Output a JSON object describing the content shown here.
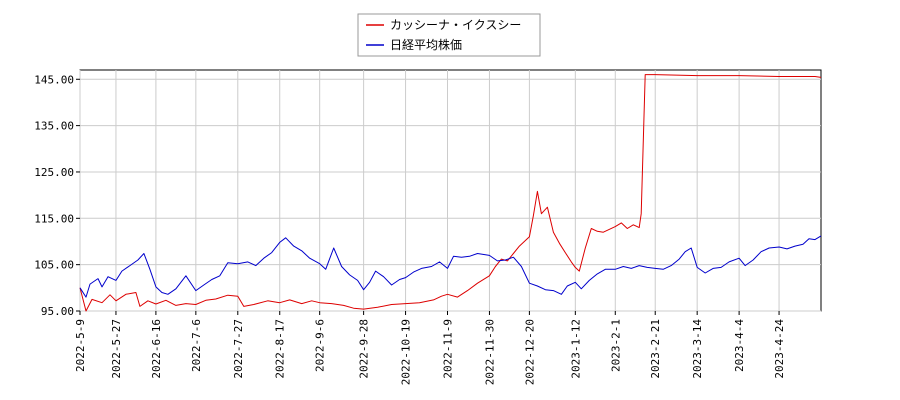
{
  "chart_data": {
    "type": "line",
    "title": "",
    "xlabel": "",
    "ylabel": "",
    "x_tick_labels": [
      "2022-5-9",
      "2022-5-27",
      "2022-6-16",
      "2022-7-6",
      "2022-7-27",
      "2022-8-17",
      "2022-9-6",
      "2022-9-28",
      "2022-10-19",
      "2022-11-9",
      "2022-11-30",
      "2022-12-20",
      "2023-1-12",
      "2023-2-1",
      "2023-2-21",
      "2023-3-14",
      "2023-4-4",
      "2023-4-24"
    ],
    "x_tick_dates": [
      "2022-05-09",
      "2022-05-27",
      "2022-06-16",
      "2022-07-06",
      "2022-07-27",
      "2022-08-17",
      "2022-09-06",
      "2022-09-28",
      "2022-10-19",
      "2022-11-09",
      "2022-11-30",
      "2022-12-20",
      "2023-01-12",
      "2023-02-01",
      "2023-02-21",
      "2023-03-14",
      "2023-04-04",
      "2023-04-24"
    ],
    "y_ticks": [
      95,
      105,
      115,
      125,
      135,
      145
    ],
    "y_tick_labels": [
      "95.00",
      "105.00",
      "115.00",
      "125.00",
      "135.00",
      "145.00"
    ],
    "xlim": [
      "2022-05-09",
      "2023-05-15"
    ],
    "ylim": [
      95,
      147
    ],
    "grid": true,
    "legend_position": "top-center",
    "series": [
      {
        "name": "カッシーナ・イクスシー",
        "color": "#dd0000",
        "points": [
          [
            "2022-05-09",
            100
          ],
          [
            "2022-05-12",
            95
          ],
          [
            "2022-05-15",
            97.5
          ],
          [
            "2022-05-20",
            96.8
          ],
          [
            "2022-05-24",
            98.5
          ],
          [
            "2022-05-27",
            97.2
          ],
          [
            "2022-06-01",
            98.6
          ],
          [
            "2022-06-06",
            99
          ],
          [
            "2022-06-08",
            96
          ],
          [
            "2022-06-12",
            97.2
          ],
          [
            "2022-06-16",
            96.5
          ],
          [
            "2022-06-21",
            97.3
          ],
          [
            "2022-06-26",
            96.2
          ],
          [
            "2022-07-01",
            96.6
          ],
          [
            "2022-07-06",
            96.4
          ],
          [
            "2022-07-11",
            97.3
          ],
          [
            "2022-07-16",
            97.6
          ],
          [
            "2022-07-22",
            98.4
          ],
          [
            "2022-07-27",
            98.2
          ],
          [
            "2022-07-30",
            96
          ],
          [
            "2022-08-04",
            96.4
          ],
          [
            "2022-08-11",
            97.2
          ],
          [
            "2022-08-17",
            96.8
          ],
          [
            "2022-08-22",
            97.4
          ],
          [
            "2022-08-28",
            96.6
          ],
          [
            "2022-09-02",
            97.2
          ],
          [
            "2022-09-06",
            96.8
          ],
          [
            "2022-09-12",
            96.6
          ],
          [
            "2022-09-18",
            96.2
          ],
          [
            "2022-09-23",
            95.6
          ],
          [
            "2022-09-28",
            95.4
          ],
          [
            "2022-10-05",
            95.8
          ],
          [
            "2022-10-12",
            96.4
          ],
          [
            "2022-10-19",
            96.6
          ],
          [
            "2022-10-26",
            96.8
          ],
          [
            "2022-11-02",
            97.4
          ],
          [
            "2022-11-06",
            98.2
          ],
          [
            "2022-11-09",
            98.6
          ],
          [
            "2022-11-14",
            98
          ],
          [
            "2022-11-19",
            99.4
          ],
          [
            "2022-11-24",
            101
          ],
          [
            "2022-11-30",
            102.6
          ],
          [
            "2022-12-03",
            104.6
          ],
          [
            "2022-12-06",
            106.2
          ],
          [
            "2022-12-09",
            105.8
          ],
          [
            "2022-12-12",
            107.4
          ],
          [
            "2022-12-15",
            109
          ],
          [
            "2022-12-20",
            111
          ],
          [
            "2022-12-22",
            115.6
          ],
          [
            "2022-12-24",
            120.8
          ],
          [
            "2022-12-26",
            116
          ],
          [
            "2022-12-29",
            117.4
          ],
          [
            "2023-01-01",
            112
          ],
          [
            "2023-01-04",
            109.6
          ],
          [
            "2023-01-07",
            107.6
          ],
          [
            "2023-01-10",
            105.6
          ],
          [
            "2023-01-12",
            104.4
          ],
          [
            "2023-01-14",
            103.6
          ],
          [
            "2023-01-17",
            108.6
          ],
          [
            "2023-01-20",
            112.8
          ],
          [
            "2023-01-23",
            112.2
          ],
          [
            "2023-01-26",
            112
          ],
          [
            "2023-02-01",
            113.2
          ],
          [
            "2023-02-04",
            114
          ],
          [
            "2023-02-07",
            112.8
          ],
          [
            "2023-02-10",
            113.6
          ],
          [
            "2023-02-13",
            113
          ],
          [
            "2023-02-14",
            116
          ],
          [
            "2023-02-16",
            146
          ],
          [
            "2023-02-21",
            146
          ],
          [
            "2023-03-14",
            145.8
          ],
          [
            "2023-04-04",
            145.8
          ],
          [
            "2023-04-24",
            145.6
          ],
          [
            "2023-05-12",
            145.6
          ],
          [
            "2023-05-15",
            145.4
          ]
        ]
      },
      {
        "name": "日経平均株価",
        "color": "#0000cc",
        "points": [
          [
            "2022-05-09",
            100
          ],
          [
            "2022-05-12",
            98
          ],
          [
            "2022-05-14",
            100.8
          ],
          [
            "2022-05-18",
            102
          ],
          [
            "2022-05-20",
            100.2
          ],
          [
            "2022-05-23",
            102.4
          ],
          [
            "2022-05-27",
            101.6
          ],
          [
            "2022-05-30",
            103.6
          ],
          [
            "2022-06-03",
            104.8
          ],
          [
            "2022-06-07",
            106
          ],
          [
            "2022-06-10",
            107.4
          ],
          [
            "2022-06-13",
            104
          ],
          [
            "2022-06-16",
            100.2
          ],
          [
            "2022-06-19",
            99
          ],
          [
            "2022-06-22",
            98.6
          ],
          [
            "2022-06-26",
            99.8
          ],
          [
            "2022-07-01",
            102.6
          ],
          [
            "2022-07-06",
            99.4
          ],
          [
            "2022-07-10",
            100.6
          ],
          [
            "2022-07-14",
            101.8
          ],
          [
            "2022-07-18",
            102.6
          ],
          [
            "2022-07-22",
            105.4
          ],
          [
            "2022-07-27",
            105.2
          ],
          [
            "2022-08-01",
            105.6
          ],
          [
            "2022-08-05",
            104.8
          ],
          [
            "2022-08-09",
            106.4
          ],
          [
            "2022-08-13",
            107.6
          ],
          [
            "2022-08-17",
            109.8
          ],
          [
            "2022-08-20",
            110.8
          ],
          [
            "2022-08-24",
            109
          ],
          [
            "2022-08-28",
            108
          ],
          [
            "2022-09-01",
            106.4
          ],
          [
            "2022-09-06",
            105.2
          ],
          [
            "2022-09-09",
            104
          ],
          [
            "2022-09-13",
            108.6
          ],
          [
            "2022-09-17",
            104.6
          ],
          [
            "2022-09-21",
            102.8
          ],
          [
            "2022-09-25",
            101.6
          ],
          [
            "2022-09-28",
            99.6
          ],
          [
            "2022-10-01",
            101.2
          ],
          [
            "2022-10-04",
            103.6
          ],
          [
            "2022-10-08",
            102.4
          ],
          [
            "2022-10-12",
            100.6
          ],
          [
            "2022-10-16",
            101.8
          ],
          [
            "2022-10-19",
            102.2
          ],
          [
            "2022-10-23",
            103.4
          ],
          [
            "2022-10-27",
            104.2
          ],
          [
            "2022-11-01",
            104.6
          ],
          [
            "2022-11-05",
            105.6
          ],
          [
            "2022-11-09",
            104.2
          ],
          [
            "2022-11-12",
            106.8
          ],
          [
            "2022-11-16",
            106.6
          ],
          [
            "2022-11-20",
            106.8
          ],
          [
            "2022-11-24",
            107.4
          ],
          [
            "2022-11-30",
            107
          ],
          [
            "2022-12-04",
            105.8
          ],
          [
            "2022-12-08",
            106
          ],
          [
            "2022-12-12",
            106.6
          ],
          [
            "2022-12-16",
            104.6
          ],
          [
            "2022-12-20",
            101
          ],
          [
            "2022-12-24",
            100.4
          ],
          [
            "2022-12-28",
            99.6
          ],
          [
            "2023-01-01",
            99.4
          ],
          [
            "2023-01-05",
            98.6
          ],
          [
            "2023-01-08",
            100.4
          ],
          [
            "2023-01-12",
            101.2
          ],
          [
            "2023-01-15",
            99.8
          ],
          [
            "2023-01-19",
            101.6
          ],
          [
            "2023-01-23",
            103
          ],
          [
            "2023-01-27",
            104
          ],
          [
            "2023-02-01",
            104
          ],
          [
            "2023-02-05",
            104.6
          ],
          [
            "2023-02-09",
            104.2
          ],
          [
            "2023-02-13",
            104.8
          ],
          [
            "2023-02-17",
            104.4
          ],
          [
            "2023-02-21",
            104.2
          ],
          [
            "2023-02-25",
            104
          ],
          [
            "2023-03-01",
            104.8
          ],
          [
            "2023-03-05",
            106.2
          ],
          [
            "2023-03-08",
            107.8
          ],
          [
            "2023-03-11",
            108.6
          ],
          [
            "2023-03-14",
            104.4
          ],
          [
            "2023-03-18",
            103.2
          ],
          [
            "2023-03-22",
            104.2
          ],
          [
            "2023-03-26",
            104.4
          ],
          [
            "2023-03-30",
            105.6
          ],
          [
            "2023-04-04",
            106.4
          ],
          [
            "2023-04-07",
            104.8
          ],
          [
            "2023-04-11",
            106
          ],
          [
            "2023-04-15",
            107.8
          ],
          [
            "2023-04-19",
            108.6
          ],
          [
            "2023-04-24",
            108.8
          ],
          [
            "2023-04-28",
            108.4
          ],
          [
            "2023-05-02",
            109
          ],
          [
            "2023-05-06",
            109.4
          ],
          [
            "2023-05-09",
            110.6
          ],
          [
            "2023-05-12",
            110.4
          ],
          [
            "2023-05-15",
            111.2
          ]
        ]
      }
    ]
  }
}
